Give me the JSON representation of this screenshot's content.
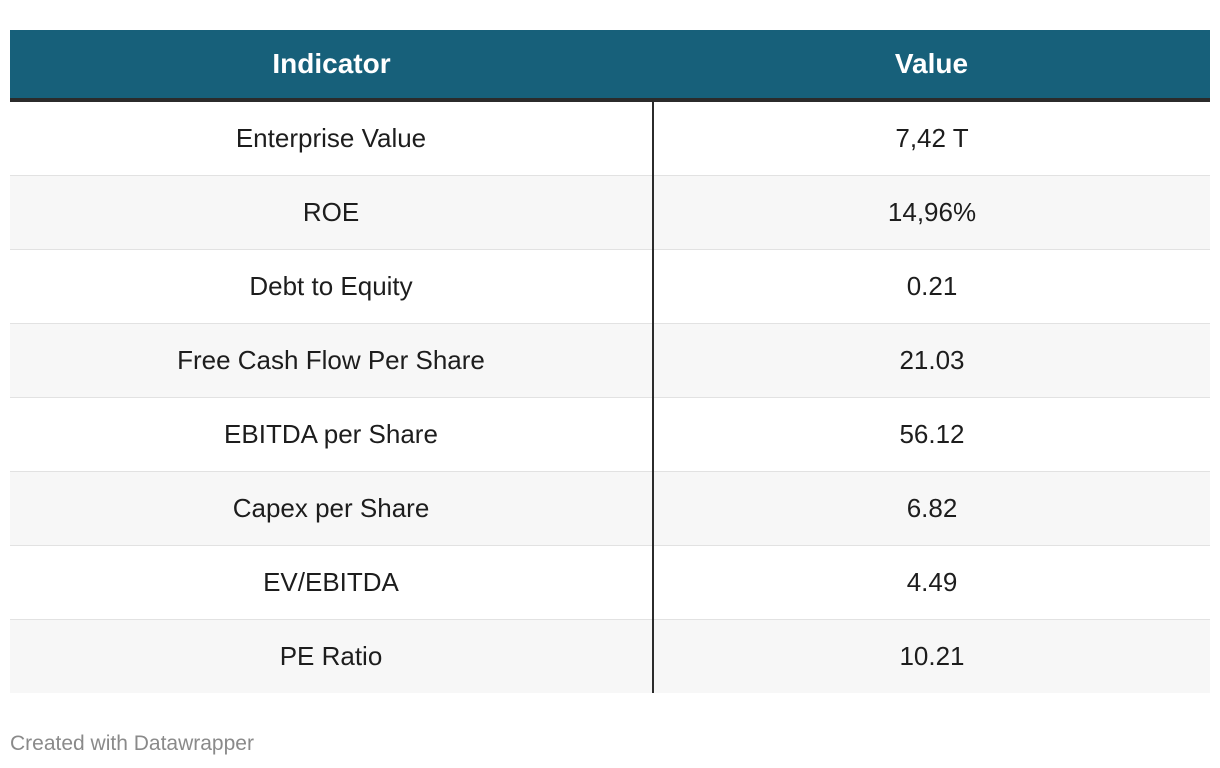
{
  "chart_data": {
    "type": "table",
    "columns": [
      "Indicator",
      "Value"
    ],
    "rows": [
      {
        "indicator": "Enterprise Value",
        "value": "7,42 T"
      },
      {
        "indicator": "ROE",
        "value": "14,96%"
      },
      {
        "indicator": "Debt to Equity",
        "value": "0.21"
      },
      {
        "indicator": "Free Cash Flow Per Share",
        "value": "21.03"
      },
      {
        "indicator": "EBITDA per Share",
        "value": "56.12"
      },
      {
        "indicator": "Capex per Share",
        "value": "6.82"
      },
      {
        "indicator": "EV/EBITDA",
        "value": "4.49"
      },
      {
        "indicator": "PE Ratio",
        "value": "10.21"
      }
    ]
  },
  "footer": {
    "credit": "Created with Datawrapper"
  },
  "colors": {
    "header_background": "#17607a",
    "header_text": "#ffffff",
    "row_stripe": "#f7f7f7",
    "divider": "#2b2b2b"
  }
}
